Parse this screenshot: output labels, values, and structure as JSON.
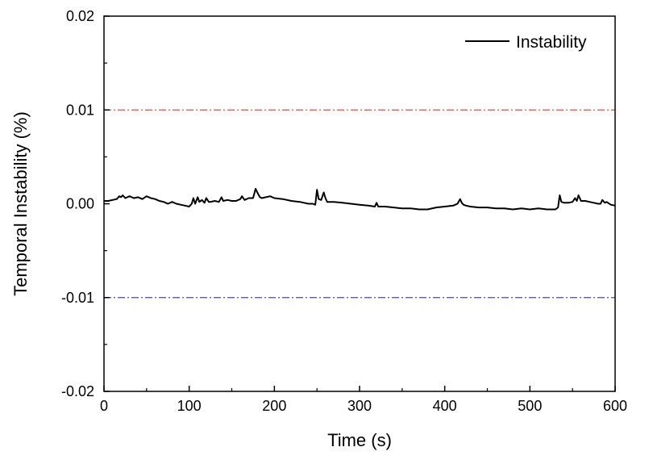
{
  "chart_data": {
    "type": "line",
    "title": "",
    "xlabel": "Time (s)",
    "ylabel": "Temporal Instability (%)",
    "xlim": [
      0,
      600
    ],
    "ylim": [
      -0.02,
      0.02
    ],
    "x_ticks": [
      0,
      100,
      200,
      300,
      400,
      500,
      600
    ],
    "x_tick_labels": [
      "0",
      "100",
      "200",
      "300",
      "400",
      "500",
      "600"
    ],
    "y_ticks": [
      -0.02,
      -0.01,
      0.0,
      0.01,
      0.02
    ],
    "y_tick_labels": [
      "-0.02",
      "-0.01",
      "0.00",
      "0.01",
      "0.02"
    ],
    "grid": false,
    "legend": {
      "position": "top-right",
      "entries": [
        "Instability"
      ]
    },
    "reference_lines": [
      {
        "y": 0.01,
        "color": "#d9534f",
        "style": "dash-dot"
      },
      {
        "y": -0.01,
        "color": "#4a4aa0",
        "style": "dash-dot"
      }
    ],
    "series": [
      {
        "name": "Instability",
        "color": "#000000",
        "x": [
          0,
          5,
          10,
          15,
          18,
          20,
          22,
          25,
          30,
          35,
          40,
          45,
          50,
          55,
          60,
          65,
          70,
          75,
          80,
          85,
          90,
          95,
          100,
          103,
          105,
          107,
          110,
          112,
          115,
          118,
          120,
          123,
          125,
          130,
          135,
          138,
          140,
          145,
          150,
          155,
          160,
          162,
          165,
          170,
          175,
          178,
          180,
          183,
          185,
          190,
          195,
          200,
          210,
          220,
          230,
          240,
          245,
          248,
          250,
          252,
          255,
          258,
          260,
          262,
          265,
          270,
          280,
          290,
          300,
          310,
          318,
          320,
          322,
          330,
          340,
          350,
          360,
          370,
          380,
          390,
          400,
          410,
          415,
          418,
          420,
          422,
          425,
          430,
          440,
          450,
          460,
          470,
          480,
          490,
          500,
          510,
          520,
          530,
          533,
          535,
          537,
          540,
          545,
          550,
          553,
          555,
          557,
          560,
          565,
          570,
          575,
          580,
          583,
          585,
          588,
          590,
          595,
          600
        ],
        "values": [
          0.0003,
          0.0003,
          0.0004,
          0.0005,
          0.0008,
          0.0007,
          0.0009,
          0.0006,
          0.0008,
          0.0006,
          0.0007,
          0.0005,
          0.0008,
          0.0006,
          0.0005,
          0.0003,
          0.0002,
          0.0,
          0.0002,
          0.0,
          -0.0001,
          -0.0002,
          -0.0003,
          0.0,
          0.0006,
          0.0,
          0.0007,
          0.0002,
          0.0004,
          0.0001,
          0.0006,
          0.0002,
          0.0002,
          0.0003,
          0.0002,
          0.0007,
          0.0003,
          0.0004,
          0.0003,
          0.0003,
          0.0005,
          0.0008,
          0.0004,
          0.0006,
          0.0006,
          0.0016,
          0.0012,
          0.0007,
          0.0006,
          0.0007,
          0.0008,
          0.0006,
          0.0005,
          0.0003,
          0.0002,
          0.0,
          0.0,
          -0.0001,
          0.0015,
          0.0005,
          0.0004,
          0.0012,
          0.0006,
          0.0002,
          0.0002,
          0.0002,
          0.0001,
          0.0,
          -0.0001,
          -0.0002,
          -0.0003,
          0.0001,
          -0.0003,
          -0.0003,
          -0.0004,
          -0.0005,
          -0.0005,
          -0.0006,
          -0.0006,
          -0.0004,
          -0.0003,
          -0.0002,
          0.0,
          0.0005,
          0.0001,
          -0.0001,
          -0.0002,
          -0.0003,
          -0.0004,
          -0.0004,
          -0.0005,
          -0.0005,
          -0.0006,
          -0.0005,
          -0.0006,
          -0.0005,
          -0.0006,
          -0.0006,
          -0.0004,
          0.0009,
          0.0002,
          0.0001,
          0.0001,
          0.0002,
          0.0006,
          0.0003,
          0.0009,
          0.0003,
          0.0003,
          0.0002,
          0.0001,
          0.0,
          0.0,
          0.0004,
          0.0001,
          0.0002,
          -0.0001,
          -0.0002
        ]
      }
    ]
  }
}
